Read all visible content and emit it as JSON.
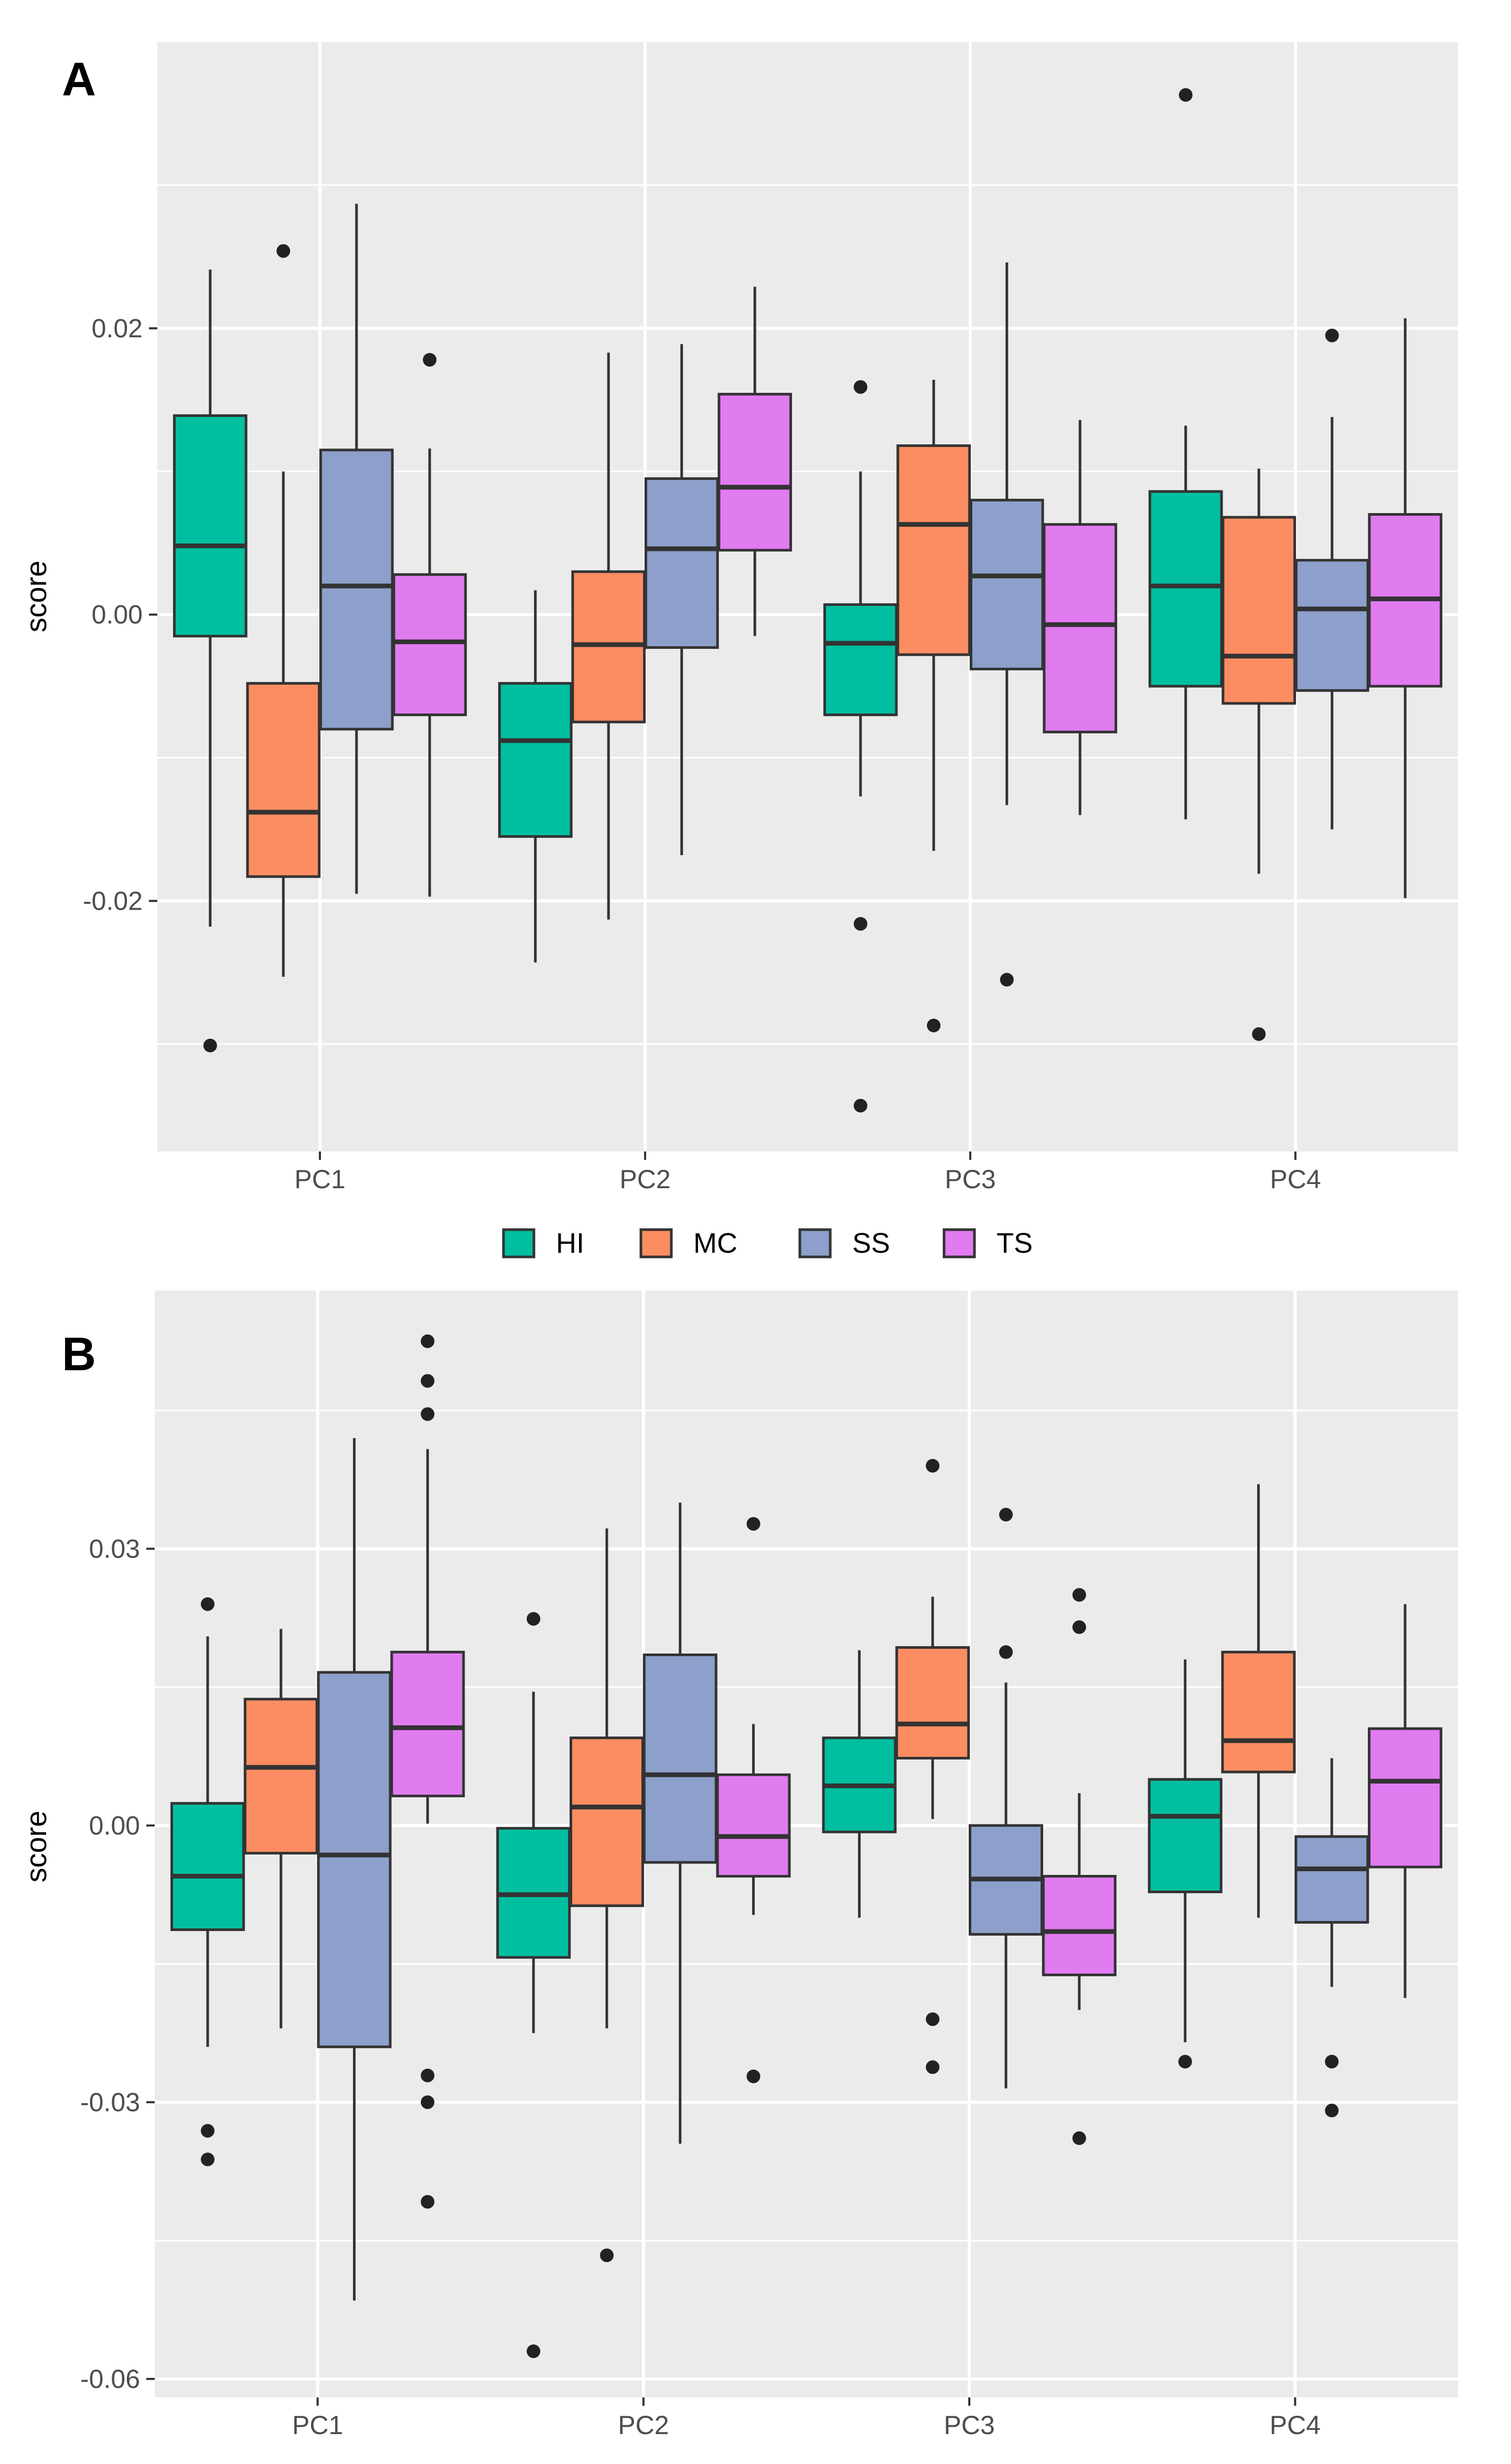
{
  "chart_data": [
    {
      "type": "boxplot",
      "panel_label": "A",
      "title": "",
      "xlabel": "",
      "ylabel": "score",
      "categories": [
        "PC1",
        "PC2",
        "PC3",
        "PC4"
      ],
      "ylim": [
        -0.0375,
        0.04
      ],
      "yticks": [
        -0.02,
        0.0,
        0.02
      ],
      "ytick_labels": [
        "-0.02",
        "0.00",
        "0.02"
      ],
      "grid": true,
      "series": [
        {
          "name": "HI",
          "boxes": [
            {
              "category": "PC1",
              "whisker_low": -0.0218,
              "q1": -0.0015,
              "median": 0.0048,
              "q3": 0.0139,
              "whisker_high": 0.0241,
              "outliers": [
                -0.0301
              ]
            },
            {
              "category": "PC2",
              "whisker_low": -0.0243,
              "q1": -0.0155,
              "median": -0.0088,
              "q3": -0.0048,
              "whisker_high": 0.0017,
              "outliers": []
            },
            {
              "category": "PC3",
              "whisker_low": -0.0127,
              "q1": -0.007,
              "median": -0.002,
              "q3": 0.0007,
              "whisker_high": 0.01,
              "outliers": [
                0.0159,
                -0.0216,
                -0.0343
              ]
            },
            {
              "category": "PC4",
              "whisker_low": -0.0143,
              "q1": -0.005,
              "median": 0.002,
              "q3": 0.0086,
              "whisker_high": 0.0132,
              "outliers": [
                0.0363
              ]
            }
          ]
        },
        {
          "name": "MC",
          "boxes": [
            {
              "category": "PC1",
              "whisker_low": -0.0253,
              "q1": -0.0183,
              "median": -0.0138,
              "q3": -0.0048,
              "whisker_high": 0.01,
              "outliers": [
                0.0254
              ]
            },
            {
              "category": "PC2",
              "whisker_low": -0.0213,
              "q1": -0.0075,
              "median": -0.0021,
              "q3": 0.003,
              "whisker_high": 0.0183,
              "outliers": []
            },
            {
              "category": "PC3",
              "whisker_low": -0.0165,
              "q1": -0.0028,
              "median": 0.0063,
              "q3": 0.0118,
              "whisker_high": 0.0164,
              "outliers": [
                -0.0287
              ]
            },
            {
              "category": "PC4",
              "whisker_low": -0.0181,
              "q1": -0.0062,
              "median": -0.0029,
              "q3": 0.0068,
              "whisker_high": 0.0102,
              "outliers": [
                -0.0293
              ]
            }
          ]
        },
        {
          "name": "SS",
          "boxes": [
            {
              "category": "PC1",
              "whisker_low": -0.0195,
              "q1": -0.008,
              "median": 0.002,
              "q3": 0.0115,
              "whisker_high": 0.0287,
              "outliers": []
            },
            {
              "category": "PC2",
              "whisker_low": -0.0168,
              "q1": -0.0023,
              "median": 0.0046,
              "q3": 0.0095,
              "whisker_high": 0.0189,
              "outliers": []
            },
            {
              "category": "PC3",
              "whisker_low": -0.0133,
              "q1": -0.0038,
              "median": 0.0027,
              "q3": 0.008,
              "whisker_high": 0.0246,
              "outliers": [
                -0.0255
              ]
            },
            {
              "category": "PC4",
              "whisker_low": -0.015,
              "q1": -0.0053,
              "median": 0.0004,
              "q3": 0.0038,
              "whisker_high": 0.0138,
              "outliers": [
                0.0195
              ]
            }
          ]
        },
        {
          "name": "TS",
          "boxes": [
            {
              "category": "PC1",
              "whisker_low": -0.0197,
              "q1": -0.007,
              "median": -0.0019,
              "q3": 0.0028,
              "whisker_high": 0.0116,
              "outliers": [
                0.0178
              ]
            },
            {
              "category": "PC2",
              "whisker_low": -0.0015,
              "q1": 0.0045,
              "median": 0.0089,
              "q3": 0.0154,
              "whisker_high": 0.0229,
              "outliers": []
            },
            {
              "category": "PC3",
              "whisker_low": -0.014,
              "q1": -0.0082,
              "median": -0.0007,
              "q3": 0.0063,
              "whisker_high": 0.0136,
              "outliers": []
            },
            {
              "category": "PC4",
              "whisker_low": -0.0198,
              "q1": -0.005,
              "median": 0.0011,
              "q3": 0.007,
              "whisker_high": 0.0207,
              "outliers": []
            }
          ]
        }
      ]
    },
    {
      "type": "boxplot",
      "panel_label": "B",
      "title": "",
      "xlabel": "",
      "ylabel": "score",
      "categories": [
        "PC1",
        "PC2",
        "PC3",
        "PC4"
      ],
      "ylim": [
        -0.062,
        0.058
      ],
      "yticks": [
        -0.06,
        -0.03,
        0.0,
        0.03
      ],
      "ytick_labels": [
        "-0.06",
        "-0.03",
        "0.00",
        "0.03"
      ],
      "grid": true,
      "series": [
        {
          "name": "HI",
          "boxes": [
            {
              "category": "PC1",
              "whisker_low": -0.024,
              "q1": -0.0113,
              "median": -0.0055,
              "q3": 0.0024,
              "whisker_high": 0.0205,
              "outliers": [
                0.024,
                -0.0331,
                -0.0362
              ]
            },
            {
              "category": "PC2",
              "whisker_low": -0.0225,
              "q1": -0.0143,
              "median": -0.0075,
              "q3": -0.0003,
              "whisker_high": 0.0145,
              "outliers": [
                0.0224,
                -0.057
              ]
            },
            {
              "category": "PC3",
              "whisker_low": -0.01,
              "q1": -0.0007,
              "median": 0.0043,
              "q3": 0.0095,
              "whisker_high": 0.019,
              "outliers": []
            },
            {
              "category": "PC4",
              "whisker_low": -0.0235,
              "q1": -0.0072,
              "median": 0.001,
              "q3": 0.005,
              "whisker_high": 0.018,
              "outliers": [
                -0.0256
              ]
            }
          ]
        },
        {
          "name": "MC",
          "boxes": [
            {
              "category": "PC1",
              "whisker_low": -0.022,
              "q1": -0.003,
              "median": 0.0063,
              "q3": 0.0137,
              "whisker_high": 0.0213,
              "outliers": []
            },
            {
              "category": "PC2",
              "whisker_low": -0.022,
              "q1": -0.0087,
              "median": 0.002,
              "q3": 0.0095,
              "whisker_high": 0.0322,
              "outliers": [
                -0.0466
              ]
            },
            {
              "category": "PC3",
              "whisker_low": 0.0007,
              "q1": 0.0073,
              "median": 0.011,
              "q3": 0.0193,
              "whisker_high": 0.0248,
              "outliers": [
                0.039,
                -0.021,
                -0.0262
              ]
            },
            {
              "category": "PC4",
              "whisker_low": -0.01,
              "q1": 0.0058,
              "median": 0.0092,
              "q3": 0.0188,
              "whisker_high": 0.037,
              "outliers": []
            }
          ]
        },
        {
          "name": "SS",
          "boxes": [
            {
              "category": "PC1",
              "whisker_low": -0.0515,
              "q1": -0.024,
              "median": -0.0032,
              "q3": 0.0166,
              "whisker_high": 0.042,
              "outliers": []
            },
            {
              "category": "PC2",
              "whisker_low": -0.0345,
              "q1": -0.004,
              "median": 0.0055,
              "q3": 0.0185,
              "whisker_high": 0.035,
              "outliers": []
            },
            {
              "category": "PC3",
              "whisker_low": -0.0285,
              "q1": -0.0118,
              "median": -0.0058,
              "q3": 0.0,
              "whisker_high": 0.0155,
              "outliers": [
                0.0337,
                0.0188
              ]
            },
            {
              "category": "PC4",
              "whisker_low": -0.0175,
              "q1": -0.0105,
              "median": -0.0047,
              "q3": -0.0012,
              "whisker_high": 0.0073,
              "outliers": [
                -0.0256,
                -0.0309
              ]
            }
          ]
        },
        {
          "name": "TS",
          "boxes": [
            {
              "category": "PC1",
              "whisker_low": 0.0002,
              "q1": 0.0032,
              "median": 0.0106,
              "q3": 0.0188,
              "whisker_high": 0.0408,
              "outliers": [
                0.0525,
                0.0482,
                0.0446,
                -0.0271,
                -0.03,
                -0.0408
              ]
            },
            {
              "category": "PC2",
              "whisker_low": -0.0097,
              "q1": -0.0055,
              "median": -0.0012,
              "q3": 0.0055,
              "whisker_high": 0.011,
              "outliers": [
                0.0327,
                -0.0272
              ]
            },
            {
              "category": "PC3",
              "whisker_low": -0.02,
              "q1": -0.0162,
              "median": -0.0115,
              "q3": -0.0055,
              "whisker_high": 0.0035,
              "outliers": [
                0.025,
                0.0215,
                -0.0339
              ]
            },
            {
              "category": "PC4",
              "whisker_low": -0.0187,
              "q1": -0.0045,
              "median": 0.0048,
              "q3": 0.0105,
              "whisker_high": 0.024,
              "outliers": []
            }
          ]
        }
      ]
    }
  ],
  "legend": {
    "position": "between-panels",
    "items": [
      {
        "label": "HI",
        "color": "#00BFA0"
      },
      {
        "label": "MC",
        "color": "#FC8D62"
      },
      {
        "label": "SS",
        "color": "#8DA0CB"
      },
      {
        "label": "TS",
        "color": "#E07BF0"
      }
    ]
  },
  "colors": {
    "HI": "#00BFA0",
    "MC": "#FC8D62",
    "SS": "#8DA0CB",
    "TS": "#E07BF0",
    "panel_bg": "#EBEBEB",
    "grid": "#FFFFFF",
    "ink": "#333333",
    "outlier": "#222222"
  }
}
